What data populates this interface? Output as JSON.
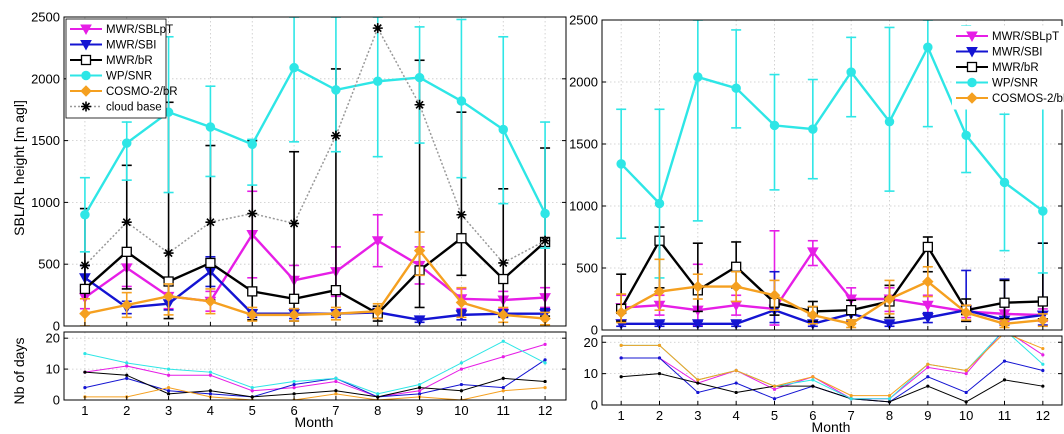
{
  "colors": {
    "MWR/SBLpT": "#e61ee6",
    "MWR/SBI": "#1414d2",
    "MWR/bR": "#000000",
    "WP/SNR": "#2ee6e6",
    "COSMO": "#f5a020",
    "cloud": "#999999"
  },
  "chart_data": [
    {
      "type": "line",
      "panel": "left",
      "xlabel": "Month",
      "ylabel_top": "SBL/RL height [m agl]",
      "ylabel_bottom": "Nb of days",
      "x": [
        1,
        2,
        3,
        4,
        5,
        6,
        7,
        8,
        9,
        10,
        11,
        12
      ],
      "xticks": [
        "1",
        "2",
        "3",
        "4",
        "5",
        "6",
        "7",
        "8",
        "9",
        "10",
        "11",
        "12"
      ],
      "ylim_top": [
        0,
        2500
      ],
      "yticks_top": [
        "0",
        "500",
        "1000",
        "1500",
        "2000",
        "2500"
      ],
      "ylim_bottom": [
        0,
        22
      ],
      "yticks_bottom": [
        "0",
        "10",
        "20"
      ],
      "grid": true,
      "legend_position": "top-left",
      "legend": [
        "MWR/SBLpT",
        "MWR/SBI",
        "MWR/bR",
        "WP/SNR",
        "COSMO-2/bR",
        "cloud base"
      ],
      "series_top": [
        {
          "name": "MWR/SBLpT",
          "color_key": "MWR/SBLpT",
          "marker": "tri-down",
          "values": [
            230,
            470,
            240,
            200,
            740,
            370,
            440,
            690,
            490,
            220,
            210,
            230
          ],
          "err": [
            [
              90,
              90
            ],
            [
              150,
              150
            ],
            [
              100,
              100
            ],
            [
              80,
              80
            ],
            [
              350,
              350
            ],
            [
              120,
              120
            ],
            [
              200,
              200
            ],
            [
              210,
              210
            ],
            [
              150,
              150
            ],
            [
              80,
              80
            ],
            [
              70,
              70
            ],
            [
              80,
              80
            ]
          ]
        },
        {
          "name": "MWR/SBI",
          "color_key": "MWR/SBI",
          "marker": "tri-down",
          "values": [
            390,
            150,
            180,
            440,
            100,
            100,
            100,
            110,
            50,
            90,
            100,
            100
          ],
          "err": [
            [
              100,
              100
            ],
            [
              50,
              50
            ],
            [
              50,
              50
            ],
            [
              120,
              120
            ],
            [
              30,
              30
            ],
            [
              40,
              40
            ],
            [
              30,
              30
            ],
            [
              30,
              30
            ],
            [
              20,
              20
            ],
            [
              40,
              40
            ],
            [
              30,
              30
            ],
            [
              40,
              40
            ]
          ]
        },
        {
          "name": "MWR/bR",
          "color_key": "MWR/bR",
          "marker": "square",
          "values": [
            300,
            600,
            360,
            510,
            280,
            220,
            290,
            100,
            450,
            710,
            380,
            680
          ],
          "err": [
            [
              200,
              650
            ],
            [
              300,
              700
            ],
            [
              300,
              1450
            ],
            [
              300,
              950
            ],
            [
              230,
              1220
            ],
            [
              180,
              1190
            ],
            [
              200,
              1790
            ],
            [
              60,
              60
            ],
            [
              300,
              1700
            ],
            [
              300,
              1020
            ],
            [
              300,
              730
            ],
            [
              600,
              760
            ]
          ]
        },
        {
          "name": "WP/SNR",
          "color_key": "WP/SNR",
          "marker": "circle",
          "values": [
            900,
            1480,
            1730,
            1610,
            1470,
            2090,
            1910,
            1980,
            2010,
            1820,
            1590,
            910
          ],
          "err": [
            [
              300,
              300
            ],
            [
              300,
              170
            ],
            [
              650,
              610
            ],
            [
              400,
              330
            ],
            [
              330,
              40
            ],
            [
              600,
              410
            ],
            [
              500,
              590
            ],
            [
              610,
              520
            ],
            [
              530,
              410
            ],
            [
              620,
              660
            ],
            [
              600,
              750
            ],
            [
              280,
              740
            ]
          ]
        },
        {
          "name": "COSMO-2/bR",
          "color_key": "COSMO",
          "marker": "diamond",
          "values": [
            100,
            170,
            240,
            200,
            90,
            90,
            100,
            120,
            610,
            190,
            90,
            60
          ],
          "err": [
            [
              100,
              120
            ],
            [
              100,
              100
            ],
            [
              150,
              100
            ],
            [
              100,
              100
            ],
            [
              50,
              60
            ],
            [
              50,
              50
            ],
            [
              50,
              50
            ],
            [
              60,
              60
            ],
            [
              200,
              150
            ],
            [
              120,
              120
            ],
            [
              60,
              60
            ],
            [
              50,
              50
            ]
          ]
        },
        {
          "name": "cloud base",
          "color_key": "cloud",
          "marker": "star",
          "dotted": true,
          "values": [
            490,
            840,
            590,
            840,
            910,
            830,
            1540,
            2410,
            1790,
            900,
            510,
            690
          ],
          "err": [
            [
              0,
              0
            ],
            [
              0,
              0
            ],
            [
              0,
              0
            ],
            [
              0,
              0
            ],
            [
              0,
              0
            ],
            [
              0,
              0
            ],
            [
              0,
              0
            ],
            [
              0,
              0
            ],
            [
              0,
              0
            ],
            [
              0,
              0
            ],
            [
              0,
              0
            ],
            [
              0,
              0
            ]
          ]
        }
      ],
      "series_bottom": [
        {
          "name": "MWR/SBLpT",
          "color_key": "MWR/SBLpT",
          "values": [
            9,
            11,
            8,
            8,
            3,
            4,
            6,
            1,
            3,
            10,
            14,
            18
          ]
        },
        {
          "name": "MWR/SBI",
          "color_key": "MWR/SBI",
          "values": [
            4,
            7,
            3,
            2,
            1,
            5,
            7,
            1,
            2,
            5,
            4,
            13
          ]
        },
        {
          "name": "MWR/bR",
          "color_key": "MWR/bR",
          "values": [
            9,
            8,
            2,
            3,
            1,
            2,
            3,
            1,
            4,
            3,
            7,
            6
          ]
        },
        {
          "name": "WP/SNR",
          "color_key": "WP/SNR",
          "values": [
            15,
            12,
            10,
            9,
            4,
            6,
            7,
            2,
            5,
            12,
            19,
            12
          ]
        },
        {
          "name": "COSMO-2/bR",
          "color_key": "COSMO",
          "values": [
            1,
            1,
            4,
            1,
            0,
            0,
            2,
            0,
            1,
            0,
            3,
            4
          ]
        }
      ]
    },
    {
      "type": "line",
      "panel": "right",
      "xlabel": "Month",
      "ylabel_top": "",
      "ylabel_bottom": "",
      "x": [
        1,
        2,
        3,
        4,
        5,
        6,
        7,
        8,
        9,
        10,
        11,
        12
      ],
      "xticks": [
        "1",
        "2",
        "3",
        "4",
        "5",
        "6",
        "7",
        "8",
        "9",
        "10",
        "11",
        "12"
      ],
      "ylim_top": [
        0,
        2500
      ],
      "yticks_top": [
        "0",
        "500",
        "1000",
        "1500",
        "2000",
        "2500"
      ],
      "ylim_bottom": [
        0,
        22
      ],
      "yticks_bottom": [
        "0",
        "10",
        "20"
      ],
      "grid": true,
      "legend_position": "top-right",
      "legend": [
        "MWR/SBLpT",
        "MWR/SBI",
        "MWR/bR",
        "WP/SNR",
        "COSMOS-2/bR"
      ],
      "series_top": [
        {
          "name": "MWR/SBLpT",
          "color_key": "MWR/SBLpT",
          "marker": "tri-down",
          "values": [
            180,
            200,
            160,
            200,
            170,
            630,
            250,
            250,
            200,
            150,
            130,
            120
          ],
          "err": [
            [
              100,
              100
            ],
            [
              80,
              80
            ],
            [
              120,
              370
            ],
            [
              80,
              80
            ],
            [
              130,
              630
            ],
            [
              110,
              90
            ],
            [
              90,
              90
            ],
            [
              100,
              90
            ],
            [
              80,
              80
            ],
            [
              50,
              50
            ],
            [
              60,
              60
            ],
            [
              50,
              50
            ]
          ]
        },
        {
          "name": "MWR/SBI",
          "color_key": "MWR/SBI",
          "marker": "tri-down",
          "values": [
            50,
            50,
            50,
            50,
            160,
            50,
            130,
            50,
            100,
            160,
            80,
            120
          ],
          "err": [
            [
              20,
              20
            ],
            [
              20,
              20
            ],
            [
              20,
              20
            ],
            [
              20,
              20
            ],
            [
              100,
              310
            ],
            [
              20,
              20
            ],
            [
              60,
              60
            ],
            [
              20,
              20
            ],
            [
              40,
              40
            ],
            [
              90,
              320
            ],
            [
              40,
              330
            ],
            [
              80,
              580
            ]
          ]
        },
        {
          "name": "MWR/bR",
          "color_key": "MWR/bR",
          "marker": "square",
          "values": [
            170,
            720,
            320,
            510,
            220,
            150,
            160,
            230,
            670,
            160,
            220,
            230
          ],
          "err": [
            [
              100,
              280
            ],
            [
              380,
              110
            ],
            [
              170,
              380
            ],
            [
              170,
              200
            ],
            [
              100,
              60
            ],
            [
              80,
              80
            ],
            [
              80,
              80
            ],
            [
              130,
              130
            ],
            [
              200,
              80
            ],
            [
              90,
              90
            ],
            [
              130,
              180
            ],
            [
              140,
              470
            ]
          ]
        },
        {
          "name": "WP/SNR",
          "color_key": "WP/SNR",
          "marker": "circle",
          "values": [
            1340,
            1020,
            2040,
            1950,
            1650,
            1620,
            2080,
            1680,
            2280,
            1570,
            1190,
            960
          ],
          "err": [
            [
              600,
              440
            ],
            [
              600,
              760
            ],
            [
              1160,
              460
            ],
            [
              320,
              470
            ],
            [
              520,
              410
            ],
            [
              400,
              400
            ],
            [
              360,
              280
            ],
            [
              560,
              760
            ],
            [
              640,
              220
            ],
            [
              300,
              880
            ],
            [
              550,
              550
            ],
            [
              500,
              860
            ]
          ]
        },
        {
          "name": "COSMOS-2/bR",
          "color_key": "COSMO",
          "marker": "diamond",
          "values": [
            140,
            310,
            350,
            350,
            280,
            120,
            50,
            250,
            390,
            140,
            50,
            80
          ],
          "err": [
            [
              80,
              150
            ],
            [
              150,
              260
            ],
            [
              100,
              100
            ],
            [
              120,
              120
            ],
            [
              120,
              120
            ],
            [
              70,
              70
            ],
            [
              30,
              30
            ],
            [
              120,
              150
            ],
            [
              120,
              120
            ],
            [
              60,
              60
            ],
            [
              30,
              30
            ],
            [
              50,
              50
            ]
          ]
        }
      ],
      "series_bottom": [
        {
          "name": "MWR/SBLpT",
          "color_key": "MWR/SBLpT",
          "values": [
            15,
            15,
            7,
            11,
            5,
            9,
            2,
            2,
            12,
            10,
            24,
            16
          ]
        },
        {
          "name": "MWR/SBI",
          "color_key": "MWR/SBI",
          "values": [
            15,
            15,
            4,
            7,
            2,
            6,
            2,
            1,
            9,
            4,
            14,
            11
          ]
        },
        {
          "name": "MWR/bR",
          "color_key": "MWR/bR",
          "values": [
            9,
            10,
            7,
            4,
            6,
            6,
            2,
            1,
            6,
            1,
            8,
            6
          ]
        },
        {
          "name": "WP/SNR",
          "color_key": "WP/SNR",
          "values": [
            19,
            19,
            8,
            11,
            6,
            8,
            2,
            2,
            13,
            11,
            24,
            13
          ]
        },
        {
          "name": "COSMOS-2/bR",
          "color_key": "COSMO",
          "values": [
            19,
            19,
            8,
            11,
            6,
            9,
            3,
            3,
            13,
            11,
            23,
            18
          ]
        }
      ]
    }
  ]
}
